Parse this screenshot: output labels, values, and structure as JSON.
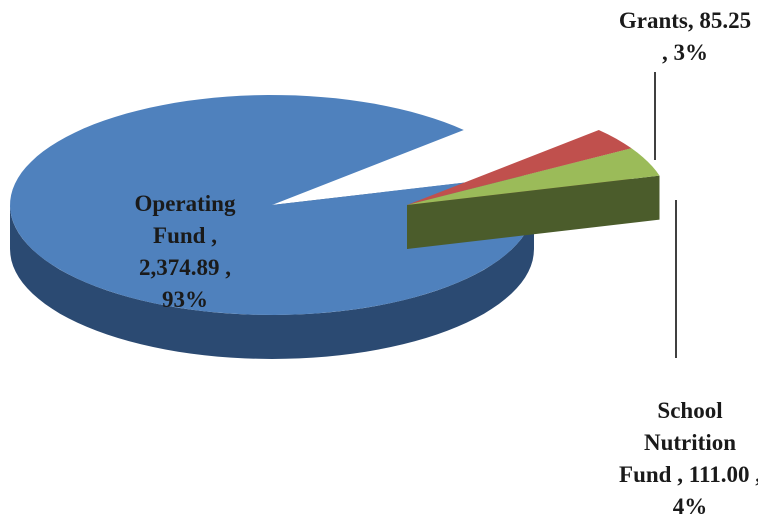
{
  "chart_data": {
    "type": "pie",
    "categories": [
      "Operating Fund",
      "Grants",
      "School Nutrition Fund"
    ],
    "values": [
      2374.89,
      85.25,
      111.0
    ],
    "value_labels": [
      "2,374.89",
      "85.25",
      "111.00"
    ],
    "percents": [
      93,
      3,
      4
    ],
    "percent_labels": [
      "93%",
      "3%",
      "4%"
    ],
    "separator": ",",
    "colors": [
      "#4f81bd",
      "#c0504d",
      "#9bbb59"
    ],
    "side_colors": [
      "#2b4a72",
      "#7b2f2d",
      "#4b5c2b"
    ],
    "exploded": [
      false,
      true,
      true
    ]
  }
}
